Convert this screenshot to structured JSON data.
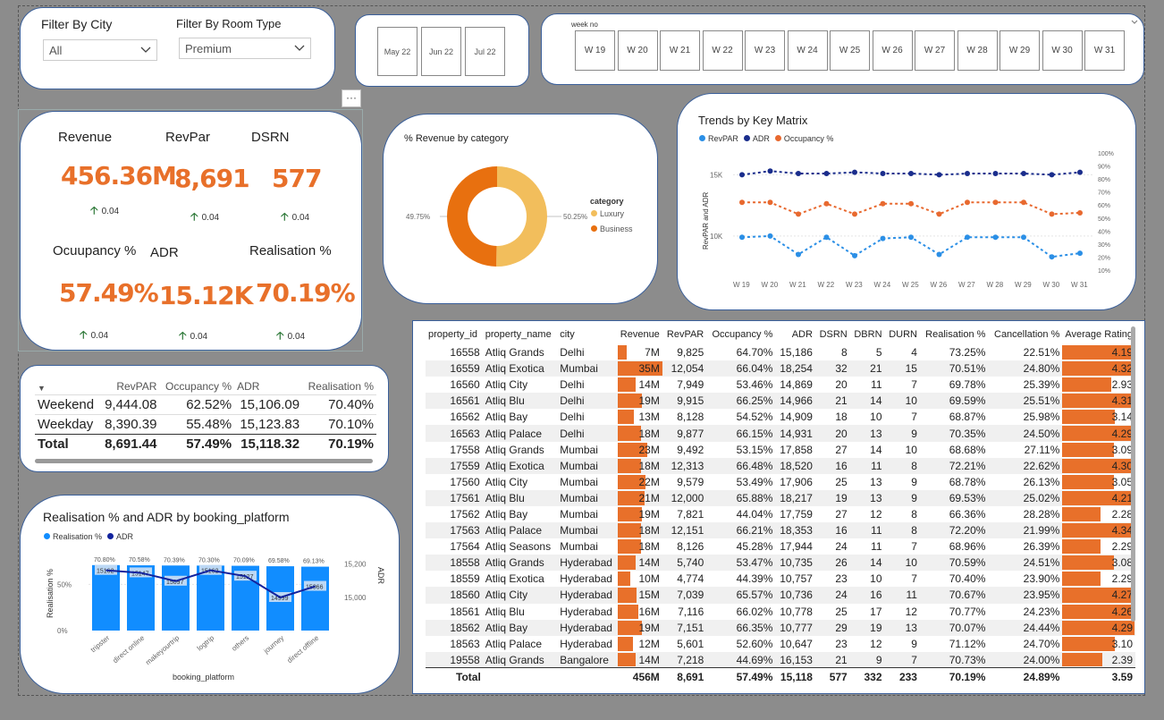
{
  "filters": {
    "city_label": "Filter By City",
    "city_value": "All",
    "room_label": "Filter By Room Type",
    "room_value": "Premium"
  },
  "months": [
    "May 22",
    "Jun 22",
    "Jul 22"
  ],
  "weeks": {
    "label": "week no",
    "items": [
      "W 19",
      "W 20",
      "W 21",
      "W 22",
      "W 23",
      "W 24",
      "W 25",
      "W 26",
      "W 27",
      "W 28",
      "W 29",
      "W 30",
      "W 31"
    ]
  },
  "more_icon": "···",
  "kpis": {
    "revenue": {
      "title": "Revenue",
      "value": "456.36M",
      "delta": "0.04"
    },
    "revpar": {
      "title": "RevPar",
      "value": "8,691",
      "delta": "0.04"
    },
    "dsrn": {
      "title": "DSRN",
      "value": "577",
      "delta": "0.04"
    },
    "occupancy": {
      "title": "Ocuupancy %",
      "value": "57.49%",
      "delta": "0.04"
    },
    "adr": {
      "title": "ADR",
      "value": "15.12K",
      "delta": "0.04"
    },
    "realisation": {
      "title": "Realisation %",
      "value": "70.19%",
      "delta": "0.04"
    }
  },
  "daytype": {
    "headers": [
      "",
      "RevPAR",
      "Occupancy %",
      "ADR",
      "Realisation %"
    ],
    "rows": [
      [
        "Weekend",
        "9,444.08",
        "62.52%",
        "15,106.09",
        "70.40%"
      ],
      [
        "Weekday",
        "8,390.39",
        "55.48%",
        "15,123.83",
        "70.10%"
      ]
    ],
    "total": [
      "Total",
      "8,691.44",
      "57.49%",
      "15,118.32",
      "70.19%"
    ]
  },
  "donut": {
    "title": "% Revenue by category",
    "legend_title": "category",
    "chart_data": {
      "type": "pie",
      "categories": [
        "Luxury",
        "Business"
      ],
      "values": [
        50.25,
        49.75
      ],
      "labels": [
        "50.25%",
        "49.75%"
      ]
    },
    "colors": [
      "#f2be5c",
      "#e8700f"
    ]
  },
  "trends": {
    "title": "Trends by Key Matrix",
    "ylabel": "RevPAR and ADR",
    "left_ticks": [
      "15K",
      "10K"
    ],
    "right_ticks": [
      "100%",
      "90%",
      "80%",
      "70%",
      "60%",
      "50%",
      "40%",
      "30%",
      "20%",
      "10%"
    ],
    "colors": {
      "RevPAR": "#2b8fe6",
      "ADR": "#1a2d8c",
      "Occupancy %": "#e8692f"
    },
    "chart_data": {
      "type": "line",
      "x": [
        "W 19",
        "W 20",
        "W 21",
        "W 22",
        "W 23",
        "W 24",
        "W 25",
        "W 26",
        "W 27",
        "W 28",
        "W 29",
        "W 30",
        "W 31"
      ],
      "series": [
        {
          "name": "RevPAR",
          "axis": "left",
          "values": [
            9900,
            10000,
            8500,
            9900,
            8400,
            9800,
            9900,
            8500,
            9900,
            9900,
            9900,
            8300,
            8600
          ]
        },
        {
          "name": "ADR",
          "axis": "left",
          "values": [
            15000,
            15300,
            15100,
            15100,
            15200,
            15100,
            15100,
            15000,
            15100,
            15100,
            15100,
            15000,
            15200
          ]
        },
        {
          "name": "Occupancy %",
          "axis": "right",
          "values": [
            62,
            62,
            53,
            61,
            53,
            61,
            61,
            53,
            62,
            62,
            62,
            53,
            54
          ]
        }
      ],
      "left_ylim": [
        7000,
        17000
      ],
      "right_ylim": [
        8,
        102
      ]
    }
  },
  "booking": {
    "title": "Realisation % and ADR by booking_platform",
    "xlabel": "booking_platform",
    "ylabel_left": "Realisation %",
    "ylabel_right": "ADR",
    "left_ticks": [
      "50%",
      "0%"
    ],
    "right_ticks": [
      "15,200",
      "15,000"
    ],
    "colors": {
      "Realisation %": "#118dff",
      "ADR": "#12239e"
    },
    "chart_data": {
      "type": "bar",
      "categories": [
        "tripster",
        "direct online",
        "makeyourtrip",
        "logtrip",
        "others",
        "journey",
        "direct offline"
      ],
      "series": [
        {
          "name": "Realisation %",
          "values": [
            70.8,
            70.58,
            70.39,
            70.3,
            70.09,
            69.58,
            69.13
          ],
          "labels": [
            "70.80%",
            "70.58%",
            "70.39%",
            "70.30%",
            "70.09%",
            "69.58%",
            "69.13%"
          ]
        },
        {
          "name": "ADR",
          "values": [
            15162,
            15147,
            15097,
            15162,
            15127,
            14999,
            15066
          ],
          "labels": [
            "15162",
            "15147",
            "15097",
            "15162",
            "15127",
            "14999",
            "15066"
          ]
        }
      ],
      "left_ylim": [
        0,
        90
      ],
      "right_ylim": [
        14800,
        15300
      ]
    }
  },
  "table": {
    "headers": [
      "property_id",
      "property_name",
      "city",
      "Revenue",
      "RevPAR",
      "Occupancy %",
      "ADR",
      "DSRN",
      "DBRN",
      "DURN",
      "Realisation %",
      "Cancellation %",
      "Average Rating"
    ],
    "rows": [
      {
        "id": "16558",
        "name": "Atliq Grands",
        "city": "Delhi",
        "revenue": "7M",
        "revenue_m": 7,
        "revpar": "9,825",
        "occ": "64.70%",
        "adr": "15,186",
        "dsrn": "8",
        "dbrn": "5",
        "durn": "4",
        "real": "73.25%",
        "canc": "22.51%",
        "rating": "4.19",
        "rating_v": 4.19
      },
      {
        "id": "16559",
        "name": "Atliq Exotica",
        "city": "Mumbai",
        "revenue": "35M",
        "revenue_m": 35,
        "revpar": "12,054",
        "occ": "66.04%",
        "adr": "18,254",
        "dsrn": "32",
        "dbrn": "21",
        "durn": "15",
        "real": "70.51%",
        "canc": "24.80%",
        "rating": "4.32",
        "rating_v": 4.32
      },
      {
        "id": "16560",
        "name": "Atliq City",
        "city": "Delhi",
        "revenue": "14M",
        "revenue_m": 14,
        "revpar": "7,949",
        "occ": "53.46%",
        "adr": "14,869",
        "dsrn": "20",
        "dbrn": "11",
        "durn": "7",
        "real": "69.78%",
        "canc": "25.39%",
        "rating": "2.93",
        "rating_v": 2.93
      },
      {
        "id": "16561",
        "name": "Atliq Blu",
        "city": "Delhi",
        "revenue": "19M",
        "revenue_m": 19,
        "revpar": "9,915",
        "occ": "66.25%",
        "adr": "14,966",
        "dsrn": "21",
        "dbrn": "14",
        "durn": "10",
        "real": "69.59%",
        "canc": "25.51%",
        "rating": "4.31",
        "rating_v": 4.31
      },
      {
        "id": "16562",
        "name": "Atliq Bay",
        "city": "Delhi",
        "revenue": "13M",
        "revenue_m": 13,
        "revpar": "8,128",
        "occ": "54.52%",
        "adr": "14,909",
        "dsrn": "18",
        "dbrn": "10",
        "durn": "7",
        "real": "68.87%",
        "canc": "25.98%",
        "rating": "3.14",
        "rating_v": 3.14
      },
      {
        "id": "16563",
        "name": "Atliq Palace",
        "city": "Delhi",
        "revenue": "18M",
        "revenue_m": 18,
        "revpar": "9,877",
        "occ": "66.15%",
        "adr": "14,931",
        "dsrn": "20",
        "dbrn": "13",
        "durn": "9",
        "real": "70.35%",
        "canc": "24.50%",
        "rating": "4.29",
        "rating_v": 4.29
      },
      {
        "id": "17558",
        "name": "Atliq Grands",
        "city": "Mumbai",
        "revenue": "23M",
        "revenue_m": 23,
        "revpar": "9,492",
        "occ": "53.15%",
        "adr": "17,858",
        "dsrn": "27",
        "dbrn": "14",
        "durn": "10",
        "real": "68.68%",
        "canc": "27.11%",
        "rating": "3.09",
        "rating_v": 3.09
      },
      {
        "id": "17559",
        "name": "Atliq Exotica",
        "city": "Mumbai",
        "revenue": "18M",
        "revenue_m": 18,
        "revpar": "12,313",
        "occ": "66.48%",
        "adr": "18,520",
        "dsrn": "16",
        "dbrn": "11",
        "durn": "8",
        "real": "72.21%",
        "canc": "22.62%",
        "rating": "4.30",
        "rating_v": 4.3
      },
      {
        "id": "17560",
        "name": "Atliq City",
        "city": "Mumbai",
        "revenue": "22M",
        "revenue_m": 22,
        "revpar": "9,579",
        "occ": "53.49%",
        "adr": "17,906",
        "dsrn": "25",
        "dbrn": "13",
        "durn": "9",
        "real": "68.78%",
        "canc": "26.13%",
        "rating": "3.05",
        "rating_v": 3.05
      },
      {
        "id": "17561",
        "name": "Atliq Blu",
        "city": "Mumbai",
        "revenue": "21M",
        "revenue_m": 21,
        "revpar": "12,000",
        "occ": "65.88%",
        "adr": "18,217",
        "dsrn": "19",
        "dbrn": "13",
        "durn": "9",
        "real": "69.53%",
        "canc": "25.02%",
        "rating": "4.21",
        "rating_v": 4.21
      },
      {
        "id": "17562",
        "name": "Atliq Bay",
        "city": "Mumbai",
        "revenue": "19M",
        "revenue_m": 19,
        "revpar": "7,821",
        "occ": "44.04%",
        "adr": "17,759",
        "dsrn": "27",
        "dbrn": "12",
        "durn": "8",
        "real": "66.36%",
        "canc": "28.28%",
        "rating": "2.28",
        "rating_v": 2.28
      },
      {
        "id": "17563",
        "name": "Atliq Palace",
        "city": "Mumbai",
        "revenue": "18M",
        "revenue_m": 18,
        "revpar": "12,151",
        "occ": "66.21%",
        "adr": "18,353",
        "dsrn": "16",
        "dbrn": "11",
        "durn": "8",
        "real": "72.20%",
        "canc": "21.99%",
        "rating": "4.34",
        "rating_v": 4.34
      },
      {
        "id": "17564",
        "name": "Atliq Seasons",
        "city": "Mumbai",
        "revenue": "18M",
        "revenue_m": 18,
        "revpar": "8,126",
        "occ": "45.28%",
        "adr": "17,944",
        "dsrn": "24",
        "dbrn": "11",
        "durn": "7",
        "real": "68.96%",
        "canc": "26.39%",
        "rating": "2.29",
        "rating_v": 2.29
      },
      {
        "id": "18558",
        "name": "Atliq Grands",
        "city": "Hyderabad",
        "revenue": "14M",
        "revenue_m": 14,
        "revpar": "5,740",
        "occ": "53.47%",
        "adr": "10,735",
        "dsrn": "26",
        "dbrn": "14",
        "durn": "10",
        "real": "70.59%",
        "canc": "24.51%",
        "rating": "3.08",
        "rating_v": 3.08
      },
      {
        "id": "18559",
        "name": "Atliq Exotica",
        "city": "Hyderabad",
        "revenue": "10M",
        "revenue_m": 10,
        "revpar": "4,774",
        "occ": "44.39%",
        "adr": "10,757",
        "dsrn": "23",
        "dbrn": "10",
        "durn": "7",
        "real": "70.40%",
        "canc": "23.90%",
        "rating": "2.29",
        "rating_v": 2.29
      },
      {
        "id": "18560",
        "name": "Atliq City",
        "city": "Hyderabad",
        "revenue": "15M",
        "revenue_m": 15,
        "revpar": "7,039",
        "occ": "65.57%",
        "adr": "10,736",
        "dsrn": "24",
        "dbrn": "16",
        "durn": "11",
        "real": "70.67%",
        "canc": "23.95%",
        "rating": "4.27",
        "rating_v": 4.27
      },
      {
        "id": "18561",
        "name": "Atliq Blu",
        "city": "Hyderabad",
        "revenue": "16M",
        "revenue_m": 16,
        "revpar": "7,116",
        "occ": "66.02%",
        "adr": "10,778",
        "dsrn": "25",
        "dbrn": "17",
        "durn": "12",
        "real": "70.77%",
        "canc": "24.23%",
        "rating": "4.26",
        "rating_v": 4.26
      },
      {
        "id": "18562",
        "name": "Atliq Bay",
        "city": "Hyderabad",
        "revenue": "19M",
        "revenue_m": 19,
        "revpar": "7,151",
        "occ": "66.35%",
        "adr": "10,777",
        "dsrn": "29",
        "dbrn": "19",
        "durn": "13",
        "real": "70.07%",
        "canc": "24.44%",
        "rating": "4.29",
        "rating_v": 4.29
      },
      {
        "id": "18563",
        "name": "Atliq Palace",
        "city": "Hyderabad",
        "revenue": "12M",
        "revenue_m": 12,
        "revpar": "5,601",
        "occ": "52.60%",
        "adr": "10,647",
        "dsrn": "23",
        "dbrn": "12",
        "durn": "9",
        "real": "71.12%",
        "canc": "24.70%",
        "rating": "3.10",
        "rating_v": 3.1
      },
      {
        "id": "19558",
        "name": "Atliq Grands",
        "city": "Bangalore",
        "revenue": "14M",
        "revenue_m": 14,
        "revpar": "7,218",
        "occ": "44.69%",
        "adr": "16,153",
        "dsrn": "21",
        "dbrn": "9",
        "durn": "7",
        "real": "70.73%",
        "canc": "24.00%",
        "rating": "2.39",
        "rating_v": 2.39
      }
    ],
    "total": [
      "Total",
      "456M",
      "8,691",
      "57.49%",
      "15,118",
      "577",
      "332",
      "233",
      "70.19%",
      "24.89%",
      "3.59"
    ]
  }
}
